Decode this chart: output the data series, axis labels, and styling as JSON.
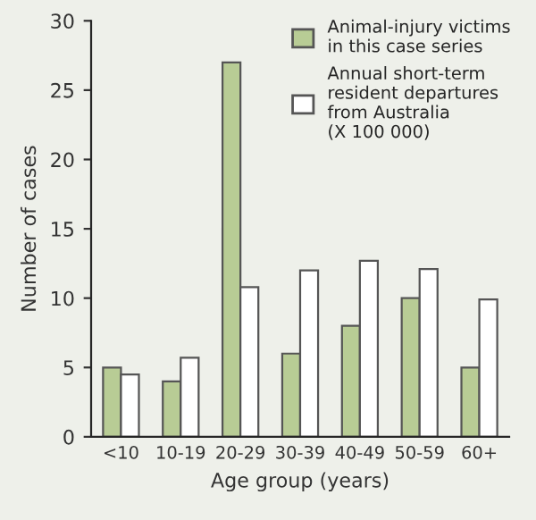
{
  "chart_data": {
    "type": "bar",
    "xlabel": "Age group (years)",
    "ylabel": "Number of cases",
    "categories": [
      "<10",
      "10-19",
      "20-29",
      "30-39",
      "40-49",
      "50-59",
      "60+"
    ],
    "series": [
      {
        "name": "Animal-injury victims\nin this case series",
        "color": "#b8cc95",
        "values": [
          5,
          4,
          27,
          6,
          8,
          10,
          5
        ]
      },
      {
        "name": "Annual short-term\nresident departures\nfrom Australia\n(X 100 000)",
        "color": "#ffffff",
        "values": [
          4.5,
          5.7,
          10.8,
          12,
          12.7,
          12.1,
          9.9
        ]
      }
    ],
    "ylim": [
      0,
      30
    ],
    "yticks": [
      0,
      5,
      10,
      15,
      20,
      25,
      30
    ],
    "grid": false,
    "legend": "top right"
  }
}
